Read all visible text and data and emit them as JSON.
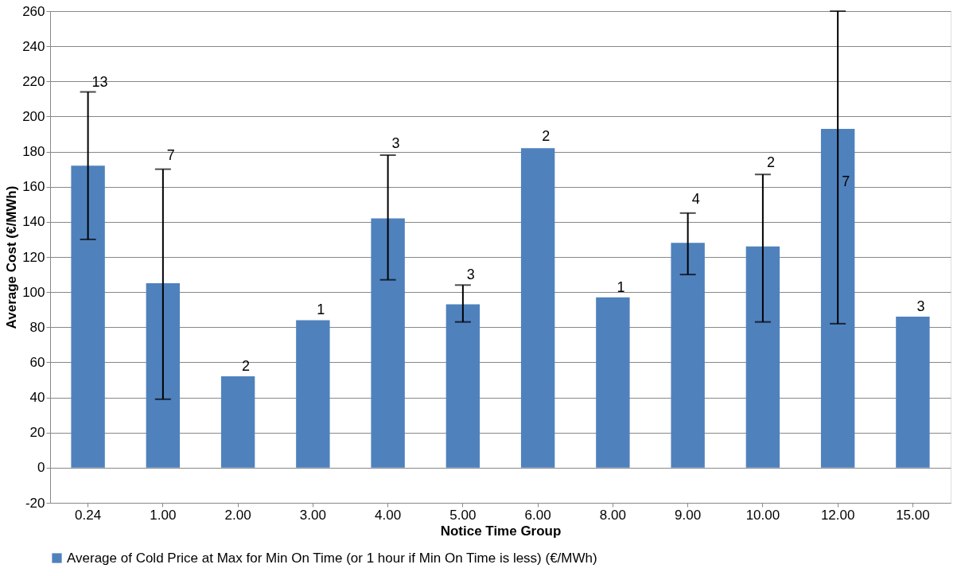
{
  "chart_data": {
    "type": "bar",
    "xlabel": "Notice Time Group",
    "ylabel": "Average Cost (€/MWh)",
    "categories": [
      "0.24",
      "1.00",
      "2.00",
      "3.00",
      "4.00",
      "5.00",
      "6.00",
      "8.00",
      "9.00",
      "10.00",
      "12.00",
      "15.00"
    ],
    "series": [
      {
        "name": "Average of Cold Price at Max for Min On Time (or 1 hour if Min On Time is less) (€/MWh)",
        "color": "#4f81bd",
        "values": [
          172,
          105,
          52,
          84,
          142,
          93,
          182,
          97,
          128,
          126,
          193,
          86
        ],
        "errors": [
          [
            130,
            214
          ],
          [
            39,
            170
          ],
          null,
          null,
          [
            107,
            178
          ],
          [
            83,
            104
          ],
          null,
          null,
          [
            110,
            145
          ],
          [
            83,
            167
          ],
          [
            82,
            260
          ],
          null
        ]
      }
    ],
    "annotations": [
      {
        "text": "13",
        "x": "0.24",
        "y": 214
      },
      {
        "text": "7",
        "x": "1.00",
        "y": 172
      },
      {
        "text": "2",
        "x": "2.00",
        "y": 52
      },
      {
        "text": "1",
        "x": "3.00",
        "y": 84
      },
      {
        "text": "3",
        "x": "4.00",
        "y": 179
      },
      {
        "text": "3",
        "x": "5.00",
        "y": 104
      },
      {
        "text": "2",
        "x": "6.00",
        "y": 183
      },
      {
        "text": "1",
        "x": "8.00",
        "y": 97
      },
      {
        "text": "4",
        "x": "9.00",
        "y": 147
      },
      {
        "text": "2",
        "x": "10.00",
        "y": 168
      },
      {
        "text": "7",
        "x": "12.00",
        "y": 157
      },
      {
        "text": "3",
        "x": "15.00",
        "y": 86
      }
    ],
    "ylim": [
      -20,
      260
    ],
    "yticks": [
      -20,
      0,
      20,
      40,
      60,
      80,
      100,
      120,
      140,
      160,
      180,
      200,
      220,
      240,
      260
    ],
    "grid": "y",
    "legend": "bottom"
  }
}
